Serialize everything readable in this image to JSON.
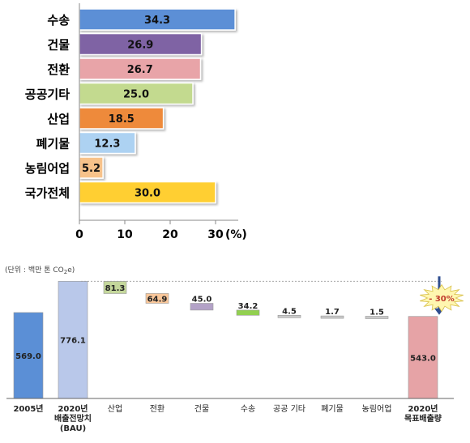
{
  "chart_data": [
    {
      "type": "bar",
      "orientation": "horizontal",
      "categories": [
        "수송",
        "건물",
        "전환",
        "공공기타",
        "산업",
        "폐기물",
        "농림어업",
        "국가전체"
      ],
      "values": [
        34.3,
        26.9,
        26.7,
        25.0,
        18.5,
        12.3,
        5.2,
        30.0
      ],
      "value_labels": [
        "34.3",
        "26.9",
        "26.7",
        "25.0",
        "18.5",
        "12.3",
        "5.2",
        "30.0"
      ],
      "colors": [
        "#5b8fd6",
        "#7f64a4",
        "#e8a4a8",
        "#c3da8f",
        "#ee8a3b",
        "#add2f2",
        "#f7c28a",
        "#ffcf33"
      ],
      "xticks": [
        "0",
        "10",
        "20",
        "30"
      ],
      "xtick_values": [
        0,
        10,
        20,
        30
      ],
      "xunit": "(%)",
      "xlim": [
        0,
        35
      ],
      "grid": false
    },
    {
      "type": "bar",
      "subtype": "waterfall",
      "unit_label": "(단위 : 백만 톤 CO",
      "unit_sub": "2",
      "unit_suffix": "e)",
      "categories": [
        "2005년",
        "2020년 배출전망치 (BAU)",
        "산업",
        "전환",
        "건물",
        "수송",
        "공공 기타",
        "폐기물",
        "농림어업",
        "2020년 목표배출량"
      ],
      "category_lines": [
        [
          "2005년"
        ],
        [
          "2020년",
          "배출전망치",
          "(BAU)"
        ],
        [
          "산업"
        ],
        [
          "전환"
        ],
        [
          "건물"
        ],
        [
          "수송"
        ],
        [
          "공공 기타"
        ],
        [
          "폐기물"
        ],
        [
          "농림어업"
        ],
        [
          "2020년",
          "목표배출량"
        ]
      ],
      "values": [
        569.0,
        776.1,
        81.3,
        64.9,
        45.0,
        34.2,
        4.5,
        1.7,
        1.5,
        543.0
      ],
      "value_labels": [
        "569.0",
        "776.1",
        "81.3",
        "64.9",
        "45.0",
        "34.2",
        "4.5",
        "1.7",
        "1.5",
        "543.0"
      ],
      "bar_kind": [
        "total",
        "total",
        "reduction",
        "reduction",
        "reduction",
        "reduction",
        "reduction",
        "reduction",
        "reduction",
        "total"
      ],
      "colors": [
        "#5b8fd6",
        "#b9c8ea",
        "#c4d79b",
        "#f9c79a",
        "#b3a2c7",
        "#92d050",
        "#c9c9c9",
        "#c9c9c9",
        "#c9c9c9",
        "#e6a3a6"
      ],
      "annotation": "- 30%",
      "ylim": [
        0,
        800
      ],
      "grid": false
    }
  ]
}
